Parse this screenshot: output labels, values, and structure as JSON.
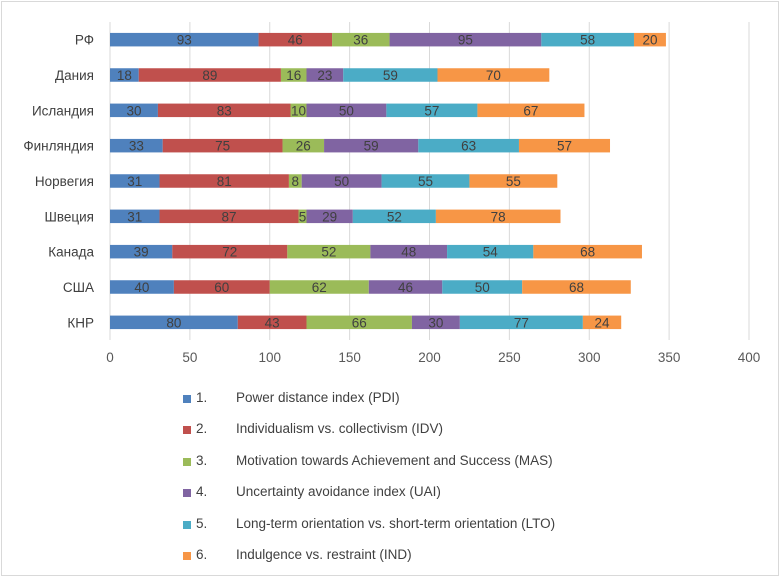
{
  "chart_data": {
    "type": "bar",
    "orientation": "horizontal",
    "stacked": true,
    "categories": [
      "РФ",
      "Дания",
      "Исландия",
      "Финляндия",
      "Норвегия",
      "Швеция",
      "Канада",
      "США",
      "КНР"
    ],
    "series": [
      {
        "name": "Power distance index (PDI)",
        "number": "1.",
        "color": "#4f81bd",
        "values": [
          93,
          18,
          30,
          33,
          31,
          31,
          39,
          40,
          80
        ]
      },
      {
        "name": "Individualism vs. collectivism (IDV)",
        "number": "2.",
        "color": "#c0504d",
        "values": [
          46,
          89,
          83,
          75,
          81,
          87,
          72,
          60,
          43
        ]
      },
      {
        "name": "Motivation towards Achievement and Success (MAS)",
        "number": "3.",
        "color": "#9bbb59",
        "values": [
          36,
          16,
          10,
          26,
          8,
          5,
          52,
          62,
          66
        ]
      },
      {
        "name": "Uncertainty avoidance index (UAI)",
        "number": "4.",
        "color": "#8064a2",
        "values": [
          95,
          23,
          50,
          59,
          50,
          29,
          48,
          46,
          30
        ]
      },
      {
        "name": "Long-term orientation vs. short-term orientation (LTO)",
        "number": "5.",
        "color": "#4bacc6",
        "values": [
          58,
          59,
          57,
          63,
          55,
          52,
          54,
          50,
          77
        ]
      },
      {
        "name": "Indulgence vs. restraint (IND)",
        "number": "6.",
        "color": "#f79646",
        "values": [
          20,
          70,
          67,
          57,
          55,
          78,
          68,
          68,
          24
        ]
      }
    ],
    "xlim": [
      0,
      400
    ],
    "xticks": [
      0,
      50,
      100,
      150,
      200,
      250,
      300,
      350,
      400
    ],
    "grid": true,
    "legend_position": "bottom"
  }
}
